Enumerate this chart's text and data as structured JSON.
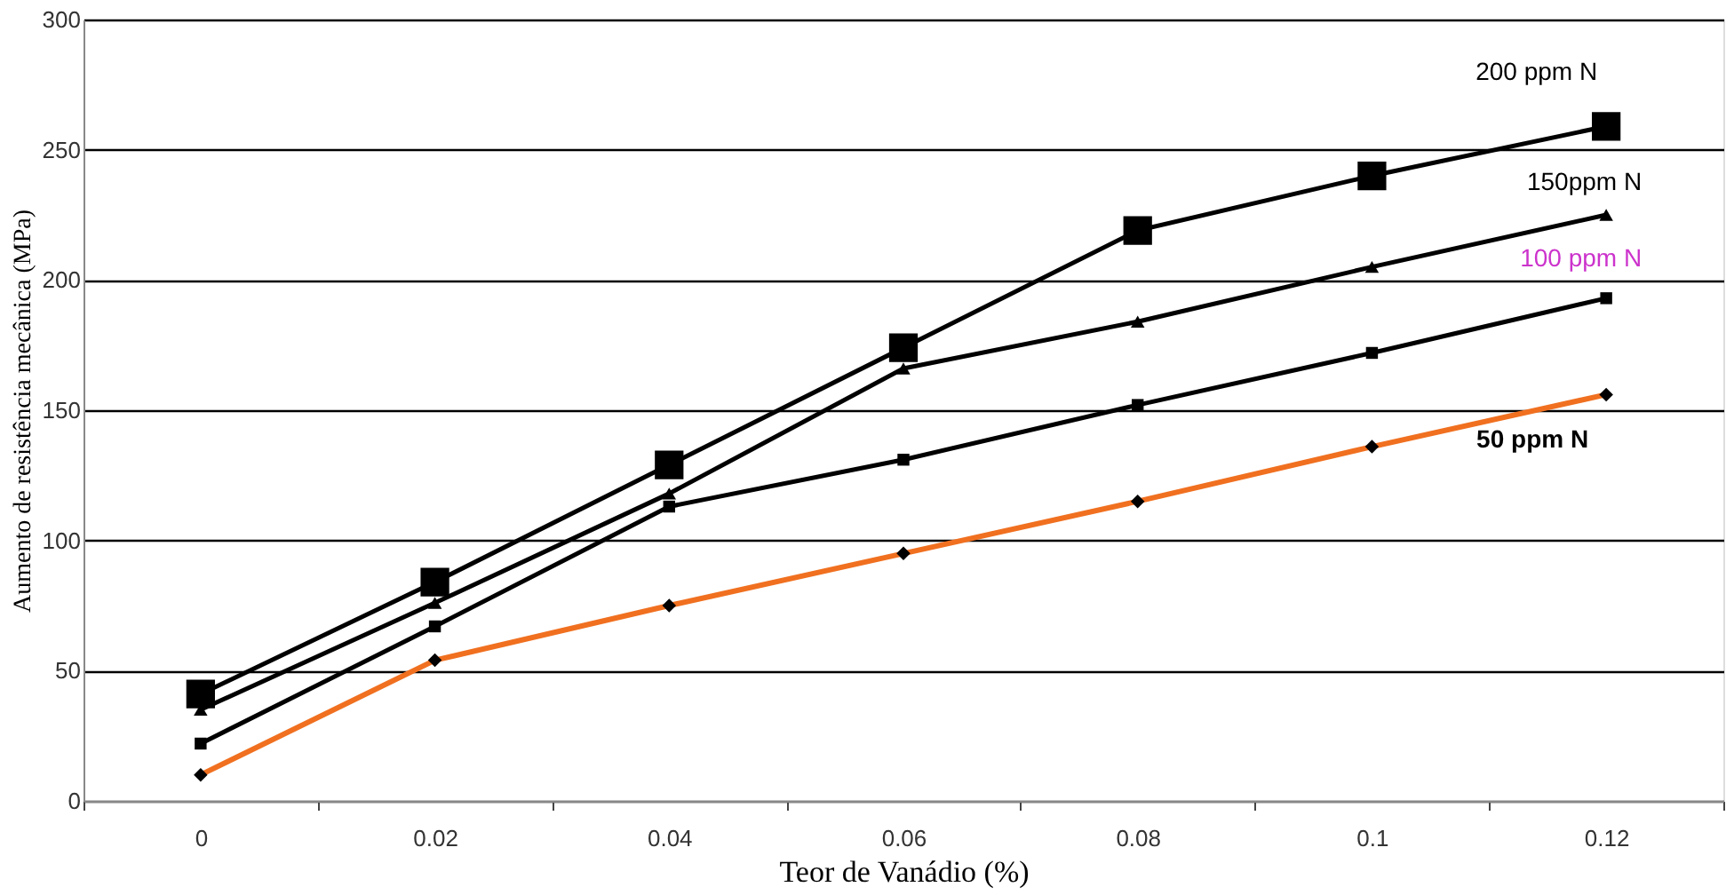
{
  "chart_data": {
    "type": "line",
    "xlabel": "Teor de Vanádio (%)",
    "ylabel": "Aumento de resistência mecânica (MPa)",
    "categories": [
      "0",
      "0.02",
      "0.04",
      "0.06",
      "0.08",
      "0.1",
      "0.12"
    ],
    "ylim": [
      0,
      300
    ],
    "yticks": [
      0,
      50,
      100,
      150,
      200,
      250,
      300
    ],
    "grid": "y",
    "series": [
      {
        "name": "200 ppm N",
        "color": "#000000",
        "marker": "square",
        "values": [
          41,
          84,
          129,
          174,
          219,
          240,
          259
        ]
      },
      {
        "name": "150ppm N",
        "color": "#000000",
        "marker": "triangle",
        "values": [
          35,
          76,
          118,
          166,
          184,
          205,
          225
        ]
      },
      {
        "name": "100 ppm N",
        "color": "#000000",
        "marker": "square",
        "values": [
          22,
          67,
          113,
          131,
          152,
          172,
          193
        ]
      },
      {
        "name": "50 ppm N",
        "color": "#f07020",
        "marker": "diamond",
        "values": [
          10,
          54,
          75,
          95,
          115,
          136,
          156
        ]
      }
    ]
  }
}
